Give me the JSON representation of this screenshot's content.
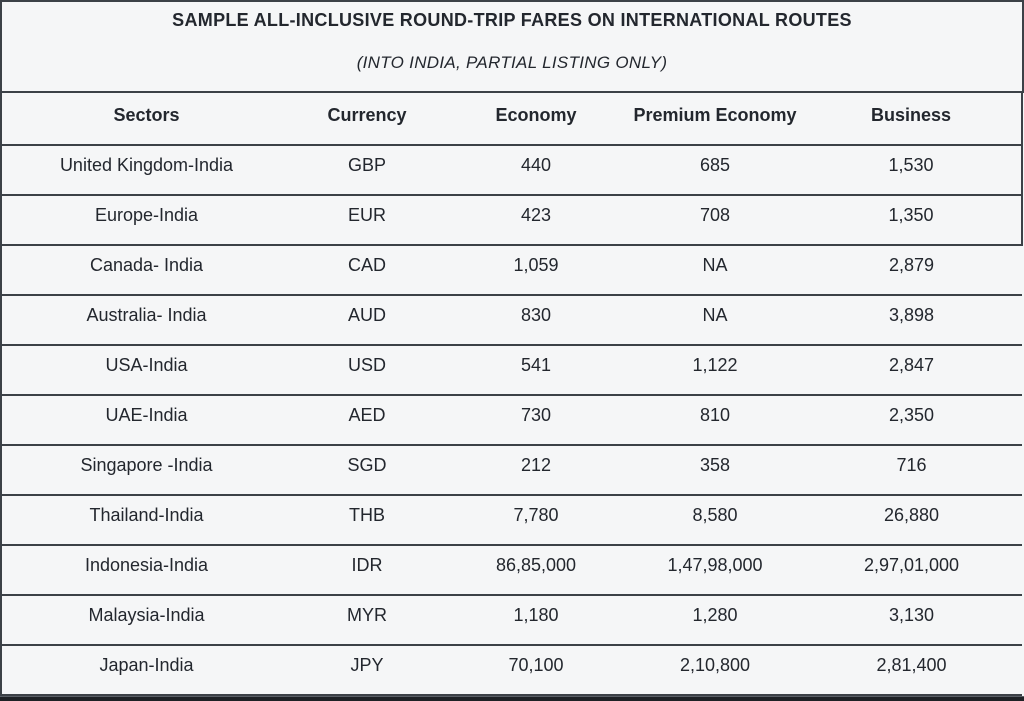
{
  "title": "SAMPLE ALL-INCLUSIVE ROUND-TRIP FARES ON INTERNATIONAL ROUTES",
  "subtitle": "(INTO INDIA, PARTIAL LISTING ONLY)",
  "table": {
    "columns": [
      "Sectors",
      "Currency",
      "Economy",
      "Premium Economy",
      "Business"
    ],
    "rows": [
      [
        "United Kingdom-India",
        "GBP",
        "440",
        "685",
        "1,530"
      ],
      [
        "Europe-India",
        "EUR",
        "423",
        "708",
        "1,350"
      ],
      [
        "Canada- India",
        "CAD",
        "1,059",
        "NA",
        "2,879"
      ],
      [
        "Australia- India",
        "AUD",
        "830",
        "NA",
        "3,898"
      ],
      [
        "USA-India",
        "USD",
        "541",
        "1,122",
        "2,847"
      ],
      [
        "UAE-India",
        "AED",
        "730",
        "810",
        "2,350"
      ],
      [
        "Singapore -India",
        "SGD",
        "212",
        "358",
        "716"
      ],
      [
        "Thailand-India",
        "THB",
        "7,780",
        "8,580",
        "26,880"
      ],
      [
        "Indonesia-India",
        "IDR",
        "86,85,000",
        "1,47,98,000",
        "2,97,01,000"
      ],
      [
        "Malaysia-India",
        "MYR",
        "1,180",
        "1,280",
        "3,130"
      ],
      [
        "Japan-India",
        "JPY",
        "70,100",
        "2,10,800",
        "2,81,400"
      ]
    ],
    "boxed_row_count": 2
  },
  "colors": {
    "background": "#f5f6f7",
    "text": "#23272e",
    "border": "#3c4147",
    "bottom_bar": "#1e2125"
  }
}
